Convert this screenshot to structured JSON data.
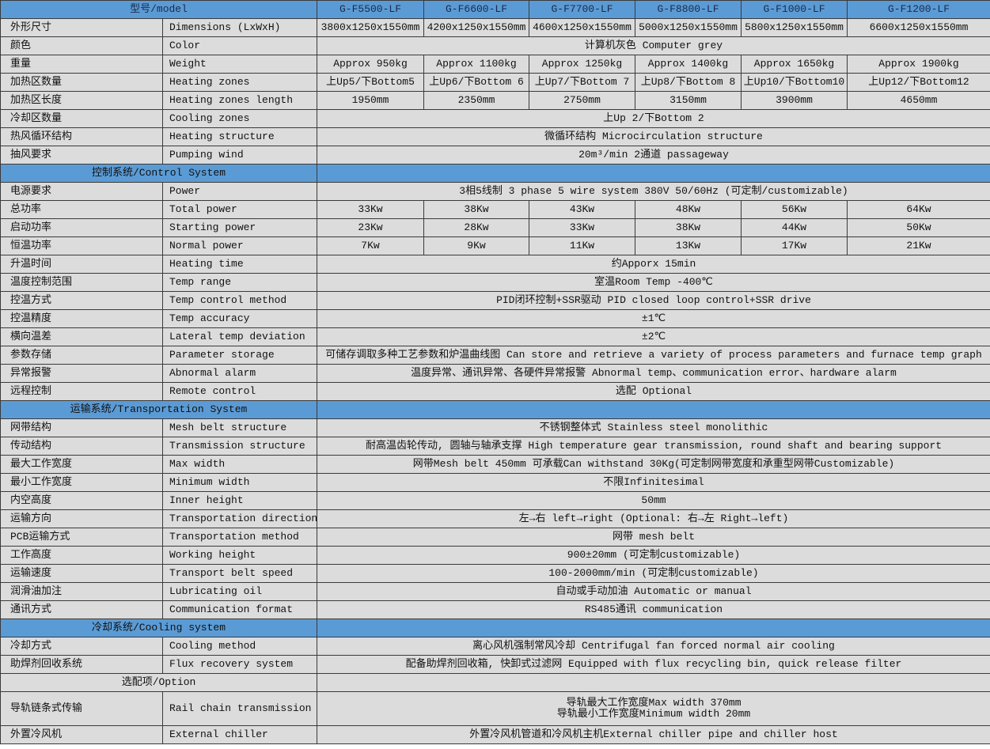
{
  "colors": {
    "section_bg": "#5b9bd5",
    "cell_bg": "#dcdcdc",
    "border": "#3a3a3a"
  },
  "header": {
    "label": "型号/model",
    "models": [
      "G-F5500-LF",
      "G-F6600-LF",
      "G-F7700-LF",
      "G-F8800-LF",
      "G-F1000-LF",
      "G-F1200-LF"
    ]
  },
  "rows": [
    {
      "type": "multi",
      "cn": "外形尺寸",
      "en": "Dimensions (LxWxH)",
      "values": [
        "3800x1250x1550mm",
        "4200x1250x1550mm",
        "4600x1250x1550mm",
        "5000x1250x1550mm",
        "5800x1250x1550mm",
        "6600x1250x1550mm"
      ]
    },
    {
      "type": "single",
      "cn": "颜色",
      "en": "Color",
      "value": "计算机灰色 Computer grey"
    },
    {
      "type": "multi",
      "cn": "重量",
      "en": "Weight",
      "values": [
        "Approx 950kg",
        "Approx 1100kg",
        "Approx 1250kg",
        "Approx 1400kg",
        "Approx 1650kg",
        "Approx 1900kg"
      ]
    },
    {
      "type": "multi",
      "cn": "加热区数量",
      "en": "Heating zones",
      "values": [
        "上Up5/下Bottom5",
        "上Up6/下Bottom 6",
        "上Up7/下Bottom 7",
        "上Up8/下Bottom 8",
        "上Up10/下Bottom10",
        "上Up12/下Bottom12"
      ]
    },
    {
      "type": "multi",
      "cn": "加热区长度",
      "en": "Heating zones length",
      "values": [
        "1950mm",
        "2350mm",
        "2750mm",
        "3150mm",
        "3900mm",
        "4650mm"
      ]
    },
    {
      "type": "single",
      "cn": "冷却区数量",
      "en": "Cooling zones",
      "value": "上Up 2/下Bottom 2"
    },
    {
      "type": "single",
      "cn": "热风循环结构",
      "en": "Heating structure",
      "value": "微循环结构 Microcirculation structure"
    },
    {
      "type": "single",
      "cn": "抽风要求",
      "en": "Pumping wind",
      "value": "20m³/min 2通道 passageway"
    },
    {
      "type": "section",
      "label": "控制系统/Control System"
    },
    {
      "type": "single",
      "cn": "电源要求",
      "en": "Power",
      "value": "3相5线制 3 phase 5 wire system  380V 50/60Hz (可定制/customizable)"
    },
    {
      "type": "multi",
      "cn": "总功率",
      "en": "Total power",
      "values": [
        "33Kw",
        "38Kw",
        "43Kw",
        "48Kw",
        "56Kw",
        "64Kw"
      ]
    },
    {
      "type": "multi",
      "cn": "启动功率",
      "en": "Starting power",
      "values": [
        "23Kw",
        "28Kw",
        "33Kw",
        "38Kw",
        "44Kw",
        "50Kw"
      ]
    },
    {
      "type": "multi",
      "cn": "恒温功率",
      "en": "Normal power",
      "values": [
        "7Kw",
        "9Kw",
        "11Kw",
        "13Kw",
        "17Kw",
        "21Kw"
      ]
    },
    {
      "type": "single",
      "cn": "升温时间",
      "en": "Heating time",
      "value": "约Apporx 15min"
    },
    {
      "type": "single",
      "cn": "温度控制范围",
      "en": "Temp range",
      "value": "室温Room Temp -400℃"
    },
    {
      "type": "single",
      "cn": "控温方式",
      "en": "Temp control method",
      "value": "PID闭环控制+SSR驱动 PID closed loop control+SSR drive"
    },
    {
      "type": "single",
      "cn": "控温精度",
      "en": "Temp accuracy",
      "value": "±1℃"
    },
    {
      "type": "single",
      "cn": "横向温差",
      "en": "Lateral temp deviation",
      "value": "±2℃"
    },
    {
      "type": "single",
      "cn": "参数存储",
      "en": "Parameter storage",
      "value": "可储存调取多种工艺参数和炉温曲线图 Can store and retrieve a variety of process parameters and furnace temp graph"
    },
    {
      "type": "single",
      "cn": "异常报警",
      "en": "Abnormal alarm",
      "value": "温度异常、通讯异常、各硬件异常报警 Abnormal temp、communication error、hardware alarm"
    },
    {
      "type": "single",
      "cn": "远程控制",
      "en": "Remote control",
      "value": "选配 Optional"
    },
    {
      "type": "section",
      "label": "运输系统/Transportation System"
    },
    {
      "type": "single",
      "cn": "网带结构",
      "en": "Mesh belt structure",
      "value": "不锈钢整体式 Stainless steel monolithic"
    },
    {
      "type": "single",
      "cn": "传动结构",
      "en": "Transmission structure",
      "value": "耐高温齿轮传动, 圆轴与轴承支撑 High temperature gear transmission, round shaft and bearing support"
    },
    {
      "type": "single",
      "cn": "最大工作宽度",
      "en": "Max width",
      "value": "网带Mesh belt 450mm 可承载Can withstand 30Kg(可定制网带宽度和承重型网带Customizable)"
    },
    {
      "type": "single",
      "cn": "最小工作宽度",
      "en": "Minimum width",
      "value": "不限Infinitesimal"
    },
    {
      "type": "single",
      "cn": "内空高度",
      "en": "Inner height",
      "value": "50mm"
    },
    {
      "type": "single",
      "cn": "运输方向",
      "en": "Transportation direction",
      "value": "左→右 left→right (Optional: 右→左 Right→left)"
    },
    {
      "type": "single",
      "cn": "PCB运输方式",
      "en": "Transportation method",
      "value": "网带 mesh belt"
    },
    {
      "type": "single",
      "cn": "工作高度",
      "en": "Working height",
      "value": "900±20mm (可定制customizable)"
    },
    {
      "type": "single",
      "cn": "运输速度",
      "en": "Transport belt speed",
      "value": "100-2000mm/min (可定制customizable)"
    },
    {
      "type": "single",
      "cn": "润滑油加注",
      "en": "Lubricating oil",
      "value": "自动或手动加油 Automatic or manual"
    },
    {
      "type": "single",
      "cn": "通讯方式",
      "en": "Communication format",
      "value": "RS485通讯 communication"
    },
    {
      "type": "section",
      "label": "冷却系统/Cooling system"
    },
    {
      "type": "single",
      "cn": "冷却方式",
      "en": "Cooling method",
      "value": "离心风机强制常风冷却 Centrifugal fan forced normal air cooling"
    },
    {
      "type": "single",
      "cn": "助焊剂回收系统",
      "en": "Flux recovery system",
      "value": "配备助焊剂回收箱, 快卸式过滤网 Equipped with flux recycling bin, quick release filter"
    },
    {
      "type": "option",
      "label": "选配项/Option"
    },
    {
      "type": "double",
      "cn": "导轨链条式传输",
      "en": "Rail chain transmission",
      "lines": [
        "导轨最大工作宽度Max width 370mm",
        "导轨最小工作宽度Minimum width 20mm"
      ]
    },
    {
      "type": "single",
      "cn": "外置冷风机",
      "en": "External chiller",
      "value": "外置冷风机管道和冷风机主机External chiller pipe and chiller host"
    }
  ]
}
